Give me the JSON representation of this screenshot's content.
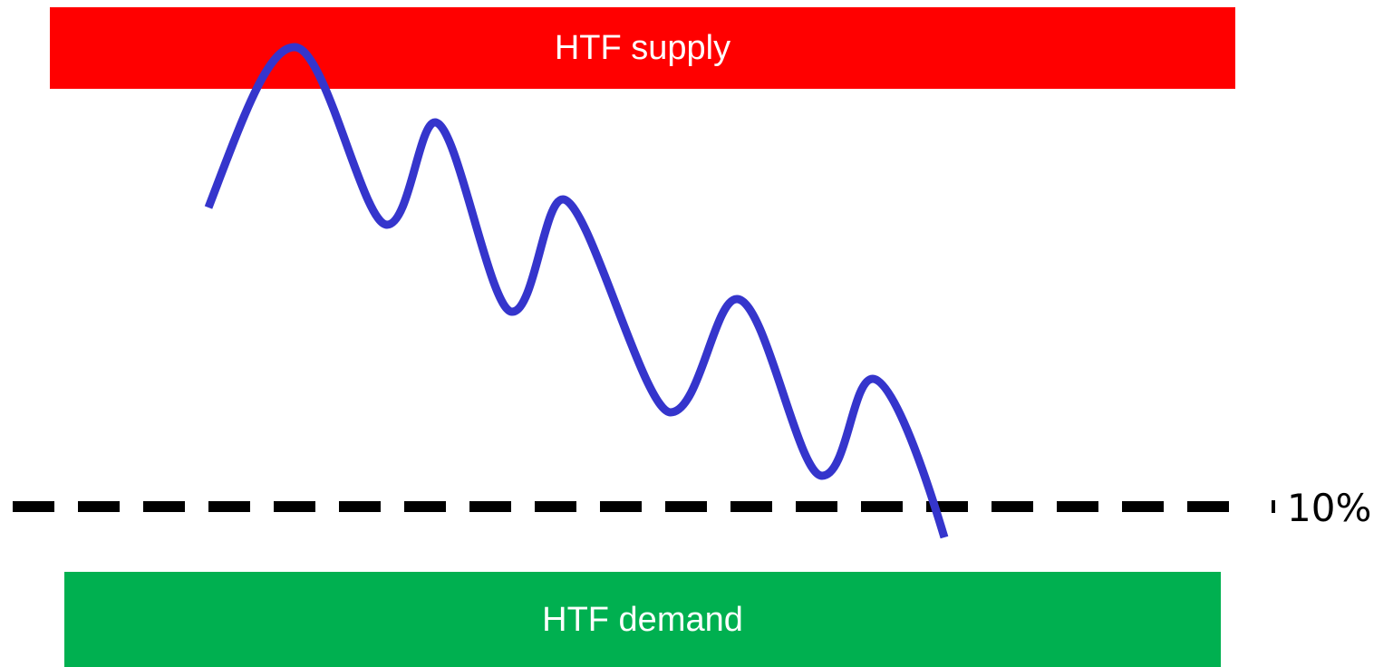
{
  "supply_zone": {
    "label": "HTF supply",
    "color": "#ff0000"
  },
  "demand_zone": {
    "label": "HTF demand",
    "color": "#00b050"
  },
  "level_line": {
    "label": "10%",
    "color": "#000000"
  },
  "price_path": {
    "color": "#3535cc"
  }
}
